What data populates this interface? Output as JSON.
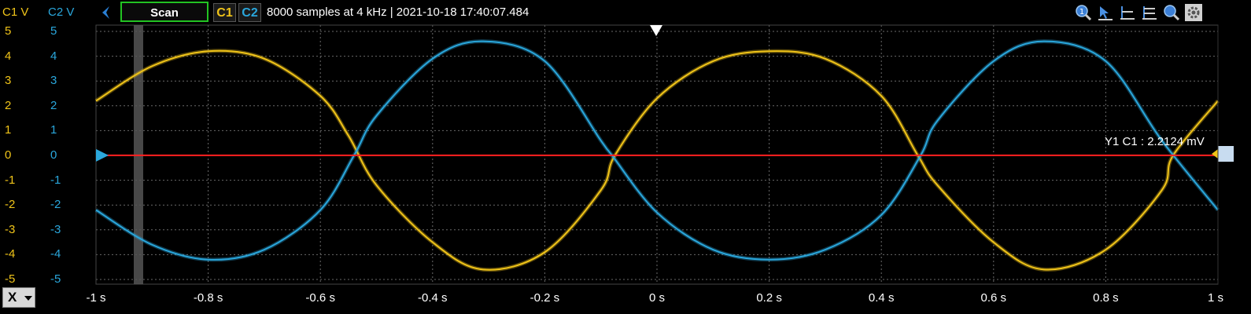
{
  "header": {
    "c1_axis_label": "C1 V",
    "c2_axis_label": "C2 V",
    "scan_button": "Scan",
    "ch1_chip": "C1",
    "ch2_chip": "C2",
    "acquisition_info": "8000 samples at 4 kHz | 2021-10-18 17:40:07.484"
  },
  "toolbar": {
    "icons": [
      "zoom-reset-icon",
      "cursor-arrow-icon",
      "horizontal-cursor-icon",
      "multi-cursor-icon",
      "zoom-icon",
      "settings-gear-icon"
    ]
  },
  "x_selector": {
    "label": "X"
  },
  "cursor": {
    "label": "Y1 C1 : 2.2124 mV",
    "value_mV": 2.2124,
    "color": "#ff2020"
  },
  "colors": {
    "c1": "#f0c419",
    "c2": "#2aa7dc",
    "grid": "#6a6a6a",
    "scan_border": "#22c322"
  },
  "chart_data": {
    "type": "line",
    "xlabel": "",
    "ylabel": "",
    "x_ticks": [
      "-1 s",
      "-0.8 s",
      "-0.6 s",
      "-0.4 s",
      "-0.2 s",
      "0 s",
      "0.2 s",
      "0.4 s",
      "0.6 s",
      "0.8 s",
      "1 s"
    ],
    "y_ticks_c1": [
      "5",
      "4",
      "3",
      "2",
      "1",
      "0",
      "-1",
      "-2",
      "-3",
      "-4",
      "-5"
    ],
    "y_ticks_c2": [
      "5",
      "4",
      "3",
      "2",
      "1",
      "0",
      "-1",
      "-2",
      "-3",
      "-4",
      "-5"
    ],
    "xlim": [
      -1,
      1
    ],
    "ylim": [
      -5,
      5
    ],
    "grid": true,
    "series": [
      {
        "name": "C1",
        "x": [
          -1,
          -0.9,
          -0.8,
          -0.7,
          -0.6,
          -0.55,
          -0.5,
          -0.4,
          -0.31,
          -0.2,
          -0.1,
          -0.075,
          0,
          0.1,
          0.2,
          0.3,
          0.4,
          0.465,
          0.5,
          0.6,
          0.69,
          0.8,
          0.9,
          0.92,
          1
        ],
        "y": [
          2.2,
          3.6,
          4.2,
          3.9,
          2.4,
          0.8,
          -1.2,
          -3.5,
          -4.6,
          -3.9,
          -1.4,
          0,
          2.3,
          3.8,
          4.2,
          3.9,
          2.4,
          0,
          -1.2,
          -3.5,
          -4.6,
          -3.8,
          -1.4,
          0,
          2.2
        ]
      },
      {
        "name": "C2",
        "x": [
          -1,
          -0.9,
          -0.8,
          -0.7,
          -0.6,
          -0.54,
          -0.5,
          -0.4,
          -0.31,
          -0.2,
          -0.1,
          -0.08,
          0,
          0.1,
          0.2,
          0.3,
          0.4,
          0.47,
          0.5,
          0.6,
          0.69,
          0.8,
          0.9,
          1
        ],
        "y": [
          -2.2,
          -3.6,
          -4.2,
          -3.8,
          -2.2,
          0,
          1.6,
          3.9,
          4.6,
          3.8,
          0.6,
          0,
          -2.3,
          -3.8,
          -4.2,
          -3.8,
          -2.4,
          0,
          1.4,
          3.8,
          4.6,
          3.8,
          0.6,
          -2.2
        ]
      }
    ]
  }
}
